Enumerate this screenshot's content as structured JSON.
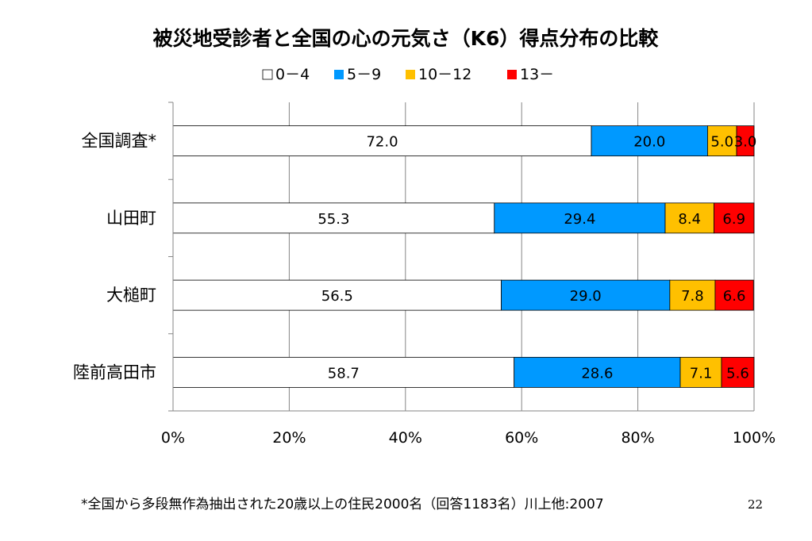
{
  "footnote": "*全国から多段無作為抽出された20歳以上の住民2000名（回答1183名）川上他:2007",
  "page_number": "22",
  "chart_data": {
    "type": "bar",
    "orientation": "horizontal",
    "stacked": true,
    "title": "被災地受診者と全国の心の元気さ（K6）得点分布の比較",
    "categories": [
      "全国調査*",
      "山田町",
      "大槌町",
      "陸前高田市"
    ],
    "series": [
      {
        "name": "0－4",
        "color": "#ffffff",
        "values": [
          72.0,
          55.3,
          56.5,
          58.7
        ],
        "labels": [
          "72.0",
          "55.3",
          "56.5",
          "58.7"
        ]
      },
      {
        "name": "5－9",
        "color": "#0099ff",
        "values": [
          20.0,
          29.4,
          29.0,
          28.6
        ],
        "labels": [
          "20.0",
          "29.4",
          "29.0",
          "28.6"
        ]
      },
      {
        "name": "10－12",
        "color": "#ffc000",
        "values": [
          5.0,
          8.4,
          7.8,
          7.1
        ],
        "labels": [
          "5.0",
          "8.4",
          "7.8",
          "7.1"
        ]
      },
      {
        "name": "13－",
        "color": "#ff0000",
        "values": [
          3.0,
          6.9,
          6.6,
          5.6
        ],
        "labels": [
          "3.0",
          "6.9",
          "6.6",
          "5.6"
        ]
      }
    ],
    "xlim": [
      0,
      100
    ],
    "x_ticks": [
      "0%",
      "20%",
      "40%",
      "60%",
      "80%",
      "100%"
    ],
    "grid": true,
    "legend_position": "top"
  }
}
